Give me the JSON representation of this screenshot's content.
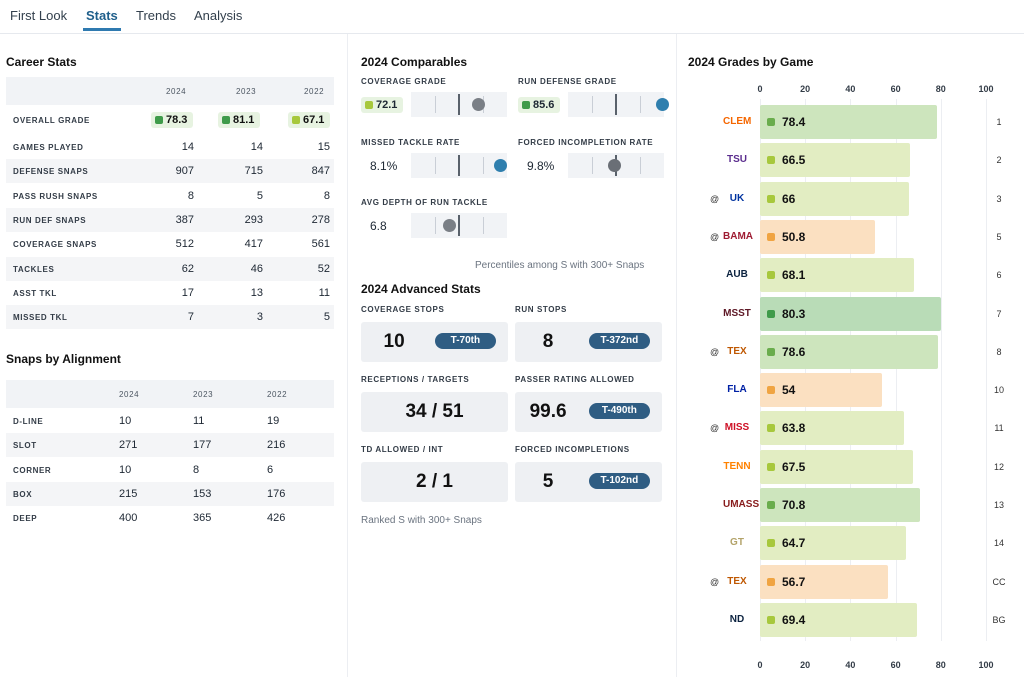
{
  "tabs": [
    {
      "label": "First Look"
    },
    {
      "label": "Stats"
    },
    {
      "label": "Trends"
    },
    {
      "label": "Analysis"
    }
  ],
  "career": {
    "title": "Career Stats",
    "years": [
      "2024",
      "2023",
      "2022"
    ],
    "overall_label": "OVERALL GRADE",
    "overall": [
      {
        "value": "78.3",
        "color": "#3f9b4a"
      },
      {
        "value": "81.1",
        "color": "#3f9b4a"
      },
      {
        "value": "67.1",
        "color": "#a7c83c"
      }
    ],
    "rows": [
      {
        "label": "GAMES PLAYED",
        "v": [
          "14",
          "14",
          "15"
        ]
      },
      {
        "label": "DEFENSE SNAPS",
        "v": [
          "907",
          "715",
          "847"
        ]
      },
      {
        "label": "PASS RUSH SNAPS",
        "v": [
          "8",
          "5",
          "8"
        ]
      },
      {
        "label": "RUN DEF SNAPS",
        "v": [
          "387",
          "293",
          "278"
        ]
      },
      {
        "label": "COVERAGE SNAPS",
        "v": [
          "512",
          "417",
          "561"
        ]
      },
      {
        "label": "TACKLES",
        "v": [
          "62",
          "46",
          "52"
        ]
      },
      {
        "label": "ASST TKL",
        "v": [
          "17",
          "13",
          "11"
        ]
      },
      {
        "label": "MISSED TKL",
        "v": [
          "7",
          "3",
          "5"
        ]
      }
    ]
  },
  "alignment": {
    "title": "Snaps by Alignment",
    "years": [
      "2024",
      "2023",
      "2022"
    ],
    "rows": [
      {
        "label": "D-LINE",
        "v": [
          "10",
          "11",
          "19"
        ]
      },
      {
        "label": "SLOT",
        "v": [
          "271",
          "177",
          "216"
        ]
      },
      {
        "label": "CORNER",
        "v": [
          "10",
          "8",
          "6"
        ]
      },
      {
        "label": "BOX",
        "v": [
          "215",
          "153",
          "176"
        ]
      },
      {
        "label": "DEEP",
        "v": [
          "400",
          "365",
          "426"
        ]
      }
    ]
  },
  "comparables": {
    "title": "2024 Comparables",
    "metrics": [
      {
        "label": "COVERAGE GRADE",
        "value": "72.1",
        "graded": true,
        "color": "#a7c83c",
        "percentile": 0.7,
        "dot": "#7a7f86"
      },
      {
        "label": "RUN DEFENSE GRADE",
        "value": "85.6",
        "graded": true,
        "color": "#3f9b4a",
        "percentile": 0.98,
        "dot": "#2f7fae"
      },
      {
        "label": "MISSED TACKLE RATE",
        "value": "8.1%",
        "graded": false,
        "percentile": 0.93,
        "dot": "#2f7fae"
      },
      {
        "label": "FORCED INCOMPLETION RATE",
        "value": "9.8%",
        "graded": false,
        "percentile": 0.48,
        "dot": "#6a6f76"
      },
      {
        "label": "AVG DEPTH OF RUN TACKLE",
        "value": "6.8",
        "graded": false,
        "percentile": 0.4,
        "dot": "#7a7f86"
      }
    ],
    "note": "Percentiles among S with 300+ Snaps"
  },
  "advanced": {
    "title": "2024 Advanced Stats",
    "items": [
      {
        "label": "COVERAGE STOPS",
        "value": "10",
        "rank": "T-70th"
      },
      {
        "label": "RUN STOPS",
        "value": "8",
        "rank": "T-372nd"
      },
      {
        "label": "RECEPTIONS / TARGETS",
        "value": "34 / 51",
        "rank": ""
      },
      {
        "label": "PASSER RATING ALLOWED",
        "value": "99.6",
        "rank": "T-490th"
      },
      {
        "label": "TD ALLOWED / INT",
        "value": "2 / 1",
        "rank": ""
      },
      {
        "label": "FORCED INCOMPLETIONS",
        "value": "5",
        "rank": "T-102nd"
      }
    ],
    "note": "Ranked S with 300+ Snaps"
  },
  "chart_data": {
    "type": "bar",
    "title": "2024 Grades by Game",
    "xlim": [
      0,
      100
    ],
    "ticks": [
      "0",
      "20",
      "40",
      "60",
      "80",
      "100"
    ],
    "games": [
      {
        "team": "CLEM",
        "away": false,
        "grade": 78.4,
        "week": "1",
        "logo": "paw-logo-icon",
        "logo_color": "#f56600"
      },
      {
        "team": "TSU",
        "away": false,
        "grade": 66.5,
        "week": "2",
        "logo": "tsu-logo-icon",
        "logo_color": "#5b2d8e"
      },
      {
        "team": "UK",
        "away": true,
        "grade": 66,
        "week": "3",
        "logo": "uk-logo-icon",
        "logo_color": "#0033a0"
      },
      {
        "team": "BAMA",
        "away": true,
        "grade": 50.8,
        "week": "5",
        "logo": "a-logo-icon",
        "logo_color": "#9e1b32"
      },
      {
        "team": "AUB",
        "away": false,
        "grade": 68.1,
        "week": "6",
        "logo": "au-logo-icon",
        "logo_color": "#0c2340"
      },
      {
        "team": "MSST",
        "away": false,
        "grade": 80.3,
        "week": "7",
        "logo": "m-logo-icon",
        "logo_color": "#5d1725"
      },
      {
        "team": "TEX",
        "away": true,
        "grade": 78.6,
        "week": "8",
        "logo": "longhorn-logo-icon",
        "logo_color": "#bf5700"
      },
      {
        "team": "FLA",
        "away": false,
        "grade": 54,
        "week": "10",
        "logo": "gator-logo-icon",
        "logo_color": "#0021a5"
      },
      {
        "team": "MISS",
        "away": true,
        "grade": 63.8,
        "week": "11",
        "logo": "ole-miss-logo-icon",
        "logo_color": "#ce1126"
      },
      {
        "team": "TENN",
        "away": false,
        "grade": 67.5,
        "week": "12",
        "logo": "t-logo-icon",
        "logo_color": "#ff8200"
      },
      {
        "team": "UMASS",
        "away": false,
        "grade": 70.8,
        "week": "13",
        "logo": "um-logo-icon",
        "logo_color": "#881c1c"
      },
      {
        "team": "GT",
        "away": false,
        "grade": 64.7,
        "week": "14",
        "logo": "gt-logo-icon",
        "logo_color": "#b3a369"
      },
      {
        "team": "TEX",
        "away": true,
        "grade": 56.7,
        "week": "CC",
        "logo": "longhorn-logo-icon",
        "logo_color": "#bf5700"
      },
      {
        "team": "ND",
        "away": false,
        "grade": 69.4,
        "week": "BG",
        "logo": "nd-logo-icon",
        "logo_color": "#0c2340"
      }
    ]
  },
  "away_marker": "@"
}
